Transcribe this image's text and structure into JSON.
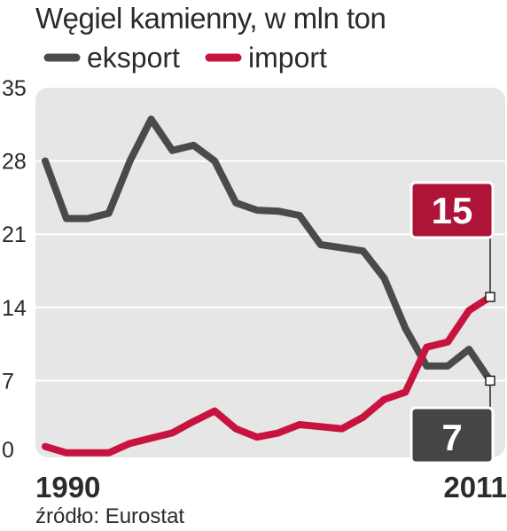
{
  "colors": {
    "export": "#4a4a4a",
    "import": "#c8133f",
    "plot_bg": "#e6e6e6",
    "grid": "#ffffff",
    "callout_import_bg": "#ad1438",
    "callout_export_bg": "#454545"
  },
  "chart_data": {
    "type": "line",
    "title": "Węgiel kamienny, w mln ton",
    "x": [
      1990,
      1991,
      1992,
      1993,
      1994,
      1995,
      1996,
      1997,
      1998,
      1999,
      2000,
      2001,
      2002,
      2003,
      2004,
      2005,
      2006,
      2007,
      2008,
      2009,
      2010,
      2011
    ],
    "series": [
      {
        "name": "eksport",
        "color": "#4a4a4a",
        "values": [
          28.0,
          22.5,
          22.5,
          23.0,
          28.0,
          32.0,
          29.0,
          29.5,
          28.0,
          24.0,
          23.3,
          23.2,
          22.8,
          20.0,
          19.7,
          19.4,
          16.8,
          12.0,
          8.4,
          8.4,
          10.0,
          7.0
        ]
      },
      {
        "name": "import",
        "color": "#c8133f",
        "values": [
          0.7,
          0.1,
          0.1,
          0.1,
          1.0,
          1.5,
          2.0,
          3.1,
          4.1,
          2.4,
          1.6,
          2.0,
          2.8,
          2.6,
          2.4,
          3.5,
          5.2,
          5.9,
          10.2,
          10.7,
          13.7,
          15.0
        ]
      }
    ],
    "ylim": [
      0,
      35
    ],
    "xlim": [
      1990,
      2011
    ],
    "yticks": [
      0,
      7,
      14,
      21,
      28,
      35
    ],
    "yticks_labels": [
      "0",
      "7",
      "14",
      "21",
      "28",
      "35"
    ],
    "xtick_labels": [
      "1990",
      "2011"
    ],
    "grid": true,
    "legend": {
      "position": "top-left",
      "entries": [
        "eksport",
        "import"
      ]
    },
    "annotations": [
      {
        "series": "import",
        "x": 2011,
        "label": "15"
      },
      {
        "series": "export",
        "x": 2011,
        "label": "7"
      }
    ],
    "source": "źródło: Eurostat"
  }
}
